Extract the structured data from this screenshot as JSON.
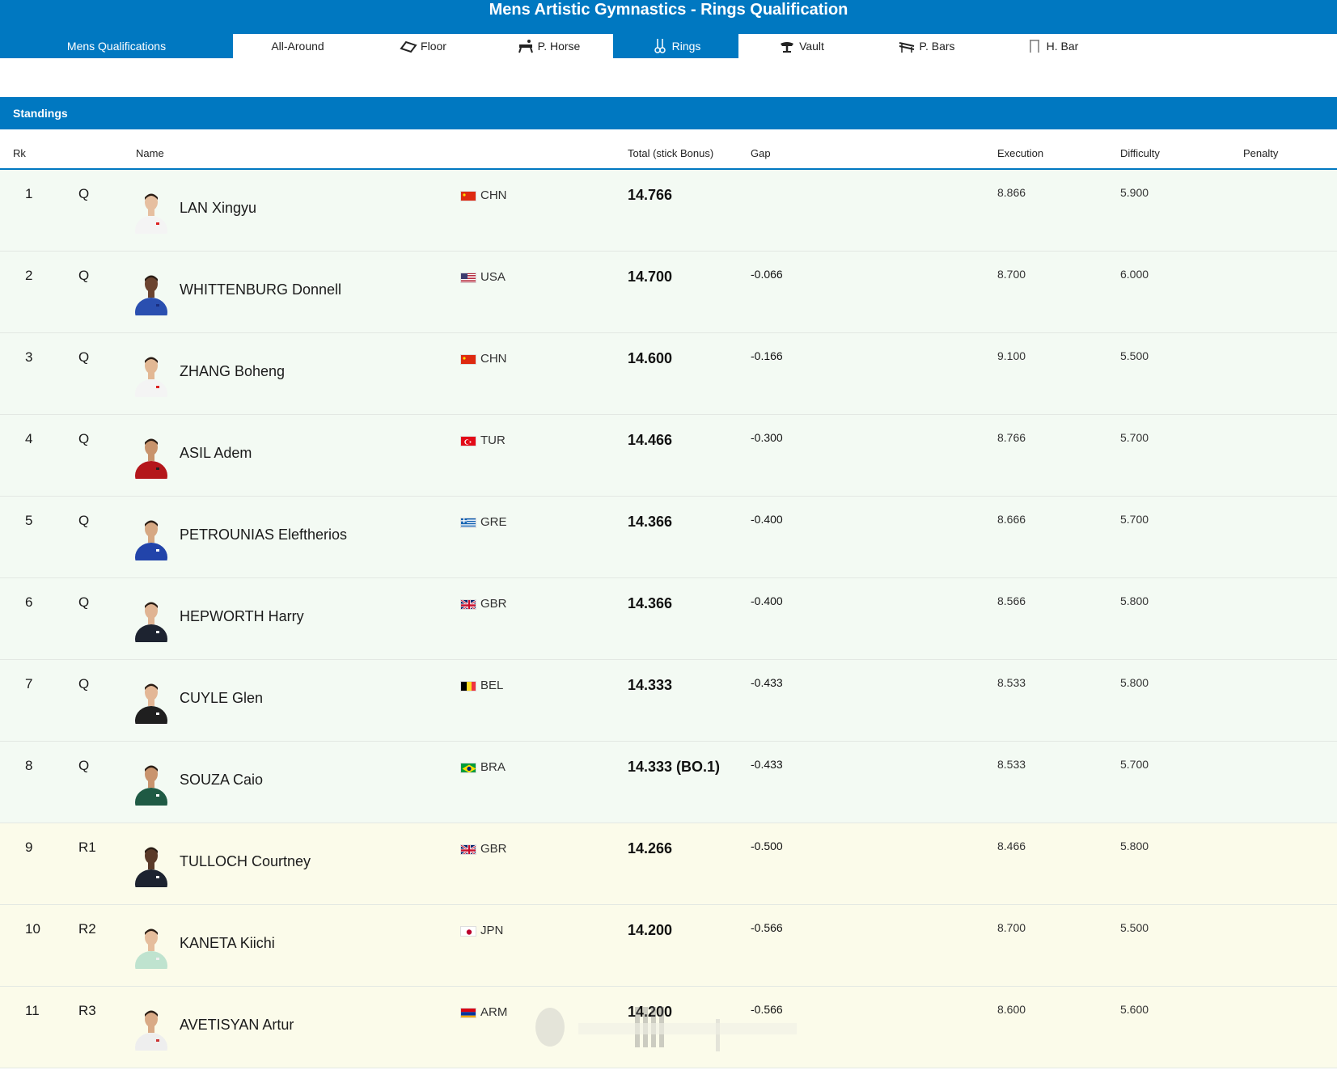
{
  "header": {
    "title": "Mens Artistic Gymnastics - Rings Qualification"
  },
  "tabs": [
    {
      "label": "Mens Qualifications",
      "icon": "",
      "active": true
    },
    {
      "label": "All-Around",
      "icon": "",
      "active": false
    },
    {
      "label": "Floor",
      "icon": "floor-icon",
      "active": false
    },
    {
      "label": "P. Horse",
      "icon": "pommel-horse-icon",
      "active": false
    },
    {
      "label": "Rings",
      "icon": "rings-icon",
      "active": true
    },
    {
      "label": "Vault",
      "icon": "vault-icon",
      "active": false
    },
    {
      "label": "P. Bars",
      "icon": "parallel-bars-icon",
      "active": false
    },
    {
      "label": "H. Bar",
      "icon": "high-bar-icon",
      "active": false
    }
  ],
  "standings": {
    "title": "Standings",
    "columns": {
      "rank": "Rk",
      "name": "Name",
      "total": "Total (stick Bonus)",
      "gap": "Gap",
      "execution": "Execution",
      "difficulty": "Difficulty",
      "penalty": "Penalty"
    },
    "rows": [
      {
        "rank": "1",
        "qual": "Q",
        "name": "LAN Xingyu",
        "noc": "CHN",
        "total": "14.766",
        "gap": "",
        "execution": "8.866",
        "difficulty": "5.900",
        "penalty": "",
        "status": "q"
      },
      {
        "rank": "2",
        "qual": "Q",
        "name": "WHITTENBURG Donnell",
        "noc": "USA",
        "total": "14.700",
        "gap": "-0.066",
        "execution": "8.700",
        "difficulty": "6.000",
        "penalty": "",
        "status": "q"
      },
      {
        "rank": "3",
        "qual": "Q",
        "name": "ZHANG Boheng",
        "noc": "CHN",
        "total": "14.600",
        "gap": "-0.166",
        "execution": "9.100",
        "difficulty": "5.500",
        "penalty": "",
        "status": "q"
      },
      {
        "rank": "4",
        "qual": "Q",
        "name": "ASIL Adem",
        "noc": "TUR",
        "total": "14.466",
        "gap": "-0.300",
        "execution": "8.766",
        "difficulty": "5.700",
        "penalty": "",
        "status": "q"
      },
      {
        "rank": "5",
        "qual": "Q",
        "name": "PETROUNIAS Eleftherios",
        "noc": "GRE",
        "total": "14.366",
        "gap": "-0.400",
        "execution": "8.666",
        "difficulty": "5.700",
        "penalty": "",
        "status": "q"
      },
      {
        "rank": "6",
        "qual": "Q",
        "name": "HEPWORTH Harry",
        "noc": "GBR",
        "total": "14.366",
        "gap": "-0.400",
        "execution": "8.566",
        "difficulty": "5.800",
        "penalty": "",
        "status": "q"
      },
      {
        "rank": "7",
        "qual": "Q",
        "name": "CUYLE Glen",
        "noc": "BEL",
        "total": "14.333",
        "gap": "-0.433",
        "execution": "8.533",
        "difficulty": "5.800",
        "penalty": "",
        "status": "q"
      },
      {
        "rank": "8",
        "qual": "Q",
        "name": "SOUZA Caio",
        "noc": "BRA",
        "total": "14.333 (BO.1)",
        "gap": "-0.433",
        "execution": "8.533",
        "difficulty": "5.700",
        "penalty": "",
        "status": "q"
      },
      {
        "rank": "9",
        "qual": "R1",
        "name": "TULLOCH Courtney",
        "noc": "GBR",
        "total": "14.266",
        "gap": "-0.500",
        "execution": "8.466",
        "difficulty": "5.800",
        "penalty": "",
        "status": "r"
      },
      {
        "rank": "10",
        "qual": "R2",
        "name": "KANETA Kiichi",
        "noc": "JPN",
        "total": "14.200",
        "gap": "-0.566",
        "execution": "8.700",
        "difficulty": "5.500",
        "penalty": "",
        "status": "r"
      },
      {
        "rank": "11",
        "qual": "R3",
        "name": "AVETISYAN Artur",
        "noc": "ARM",
        "total": "14.200",
        "gap": "-0.566",
        "execution": "8.600",
        "difficulty": "5.600",
        "penalty": "",
        "status": "r"
      }
    ]
  },
  "colors": {
    "brand_blue": "#0078c1",
    "qualified_row": "#f3faf3",
    "reserve_row": "#fbfbea"
  }
}
